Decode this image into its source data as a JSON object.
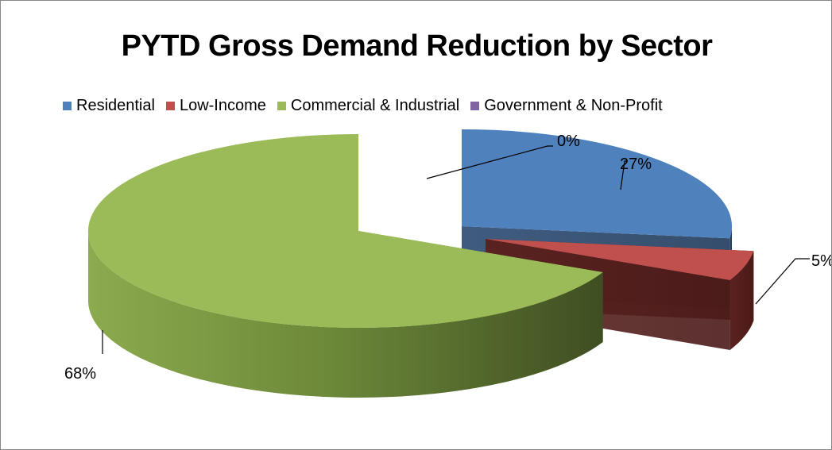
{
  "chart_data": {
    "type": "pie",
    "title": "PYTD Gross Demand Reduction by Sector",
    "legend_position": "top",
    "style": "3d-exploded",
    "categories": [
      "Residential",
      "Low-Income",
      "Commercial & Industrial",
      "Government & Non-Profit"
    ],
    "values": [
      27,
      5,
      68,
      0
    ],
    "data_labels": [
      "27%",
      "5%",
      "68%",
      "0%"
    ],
    "colors": [
      "#4F81BD",
      "#C0504D",
      "#9BBB59",
      "#8064A2"
    ]
  }
}
